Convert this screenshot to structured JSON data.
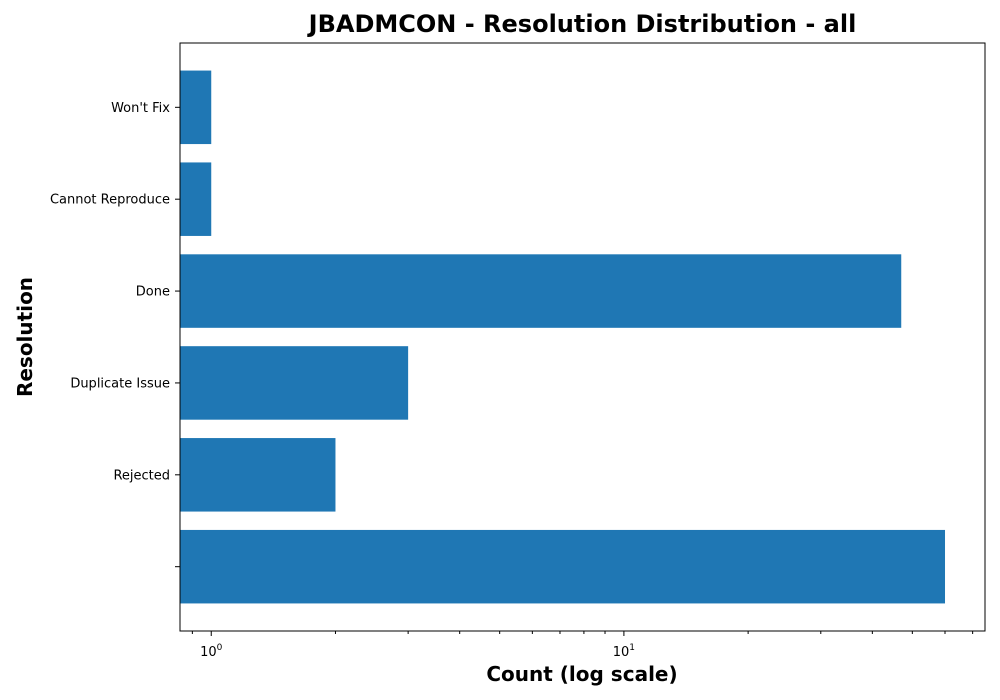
{
  "chart_data": {
    "type": "bar",
    "orientation": "horizontal",
    "title": "JBADMCON - Resolution Distribution - all",
    "xlabel": "Count (log scale)",
    "ylabel": "Resolution",
    "xscale": "log",
    "xlim": [
      0.84,
      75
    ],
    "x_ticks": [
      1,
      10
    ],
    "categories": [
      "",
      "Rejected",
      "Duplicate Issue",
      "Done",
      "Cannot Reproduce",
      "Won't Fix"
    ],
    "values": [
      60,
      2,
      3,
      47,
      1,
      1
    ],
    "bar_color": "#1f77b4",
    "grid": false,
    "legend": "none"
  }
}
